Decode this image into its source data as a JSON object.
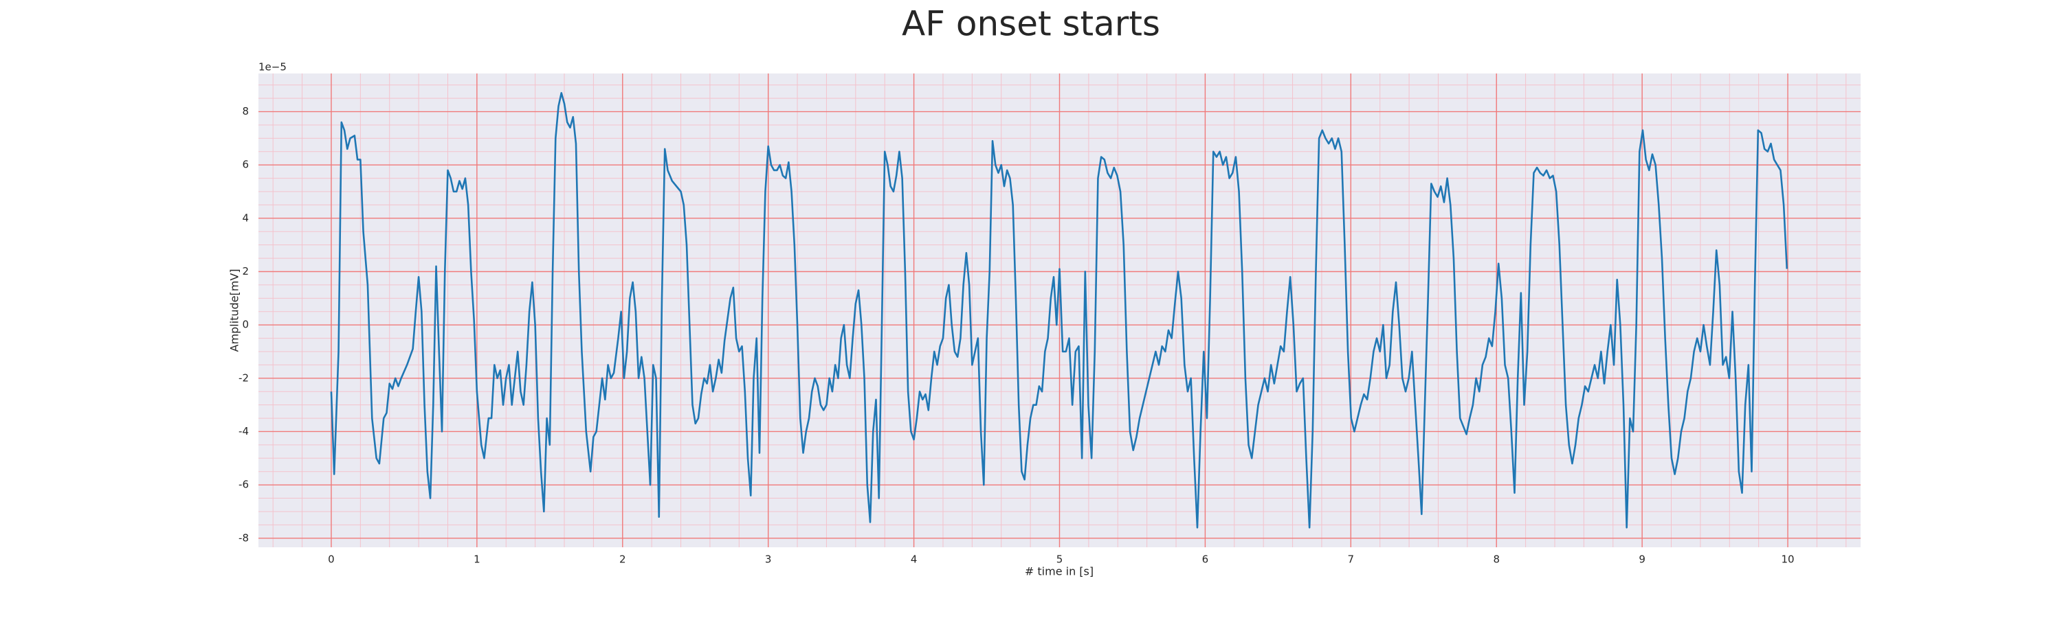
{
  "chart_data": {
    "type": "line",
    "title": "AF onset starts",
    "xlabel": "# time in [s]",
    "ylabel": "Amplitude[mV]",
    "y_offset_label": "1e−5",
    "color": "#1f77b4",
    "grid": true,
    "minor_grid": true,
    "xlim": [
      -0.5,
      10.5
    ],
    "ylim": [
      -8.34,
      9.43
    ],
    "xticks": [
      0,
      1,
      2,
      3,
      4,
      5,
      6,
      7,
      8,
      9,
      10
    ],
    "yticks": [
      -8,
      -6,
      -4,
      -2,
      0,
      2,
      4,
      6,
      8
    ],
    "x": [
      0,
      0.02,
      0.05,
      0.07,
      0.09,
      0.11,
      0.13,
      0.16,
      0.18,
      0.2,
      0.22,
      0.25,
      0.28,
      0.31,
      0.33,
      0.36,
      0.38,
      0.4,
      0.42,
      0.44,
      0.46,
      0.48,
      0.52,
      0.56,
      0.58,
      0.6,
      0.62,
      0.64,
      0.66,
      0.68,
      0.7,
      0.72,
      0.74,
      0.76,
      0.78,
      0.8,
      0.82,
      0.84,
      0.86,
      0.88,
      0.9,
      0.92,
      0.94,
      0.96,
      0.98,
      1,
      1.03,
      1.05,
      1.08,
      1.1,
      1.12,
      1.14,
      1.16,
      1.18,
      1.2,
      1.22,
      1.24,
      1.26,
      1.28,
      1.3,
      1.32,
      1.34,
      1.36,
      1.38,
      1.4,
      1.42,
      1.44,
      1.46,
      1.48,
      1.5,
      1.52,
      1.54,
      1.56,
      1.58,
      1.6,
      1.62,
      1.64,
      1.66,
      1.68,
      1.7,
      1.72,
      1.75,
      1.78,
      1.8,
      1.82,
      1.84,
      1.86,
      1.88,
      1.9,
      1.92,
      1.94,
      1.97,
      1.99,
      2.01,
      2.03,
      2.05,
      2.07,
      2.09,
      2.11,
      2.13,
      2.15,
      2.17,
      2.19,
      2.21,
      2.23,
      2.25,
      2.27,
      2.29,
      2.31,
      2.34,
      2.37,
      2.4,
      2.42,
      2.44,
      2.46,
      2.48,
      2.5,
      2.52,
      2.54,
      2.56,
      2.58,
      2.6,
      2.62,
      2.64,
      2.66,
      2.68,
      2.7,
      2.72,
      2.74,
      2.76,
      2.78,
      2.8,
      2.82,
      2.84,
      2.86,
      2.88,
      2.9,
      2.92,
      2.94,
      2.96,
      2.98,
      3,
      3.02,
      3.04,
      3.06,
      3.08,
      3.1,
      3.12,
      3.14,
      3.16,
      3.18,
      3.2,
      3.22,
      3.24,
      3.26,
      3.28,
      3.3,
      3.32,
      3.34,
      3.36,
      3.38,
      3.4,
      3.42,
      3.44,
      3.46,
      3.48,
      3.5,
      3.52,
      3.54,
      3.56,
      3.58,
      3.6,
      3.62,
      3.64,
      3.66,
      3.68,
      3.7,
      3.72,
      3.74,
      3.76,
      3.78,
      3.8,
      3.82,
      3.84,
      3.86,
      3.88,
      3.9,
      3.92,
      3.94,
      3.96,
      3.98,
      4,
      4.02,
      4.04,
      4.06,
      4.08,
      4.1,
      4.12,
      4.14,
      4.16,
      4.18,
      4.2,
      4.22,
      4.24,
      4.26,
      4.28,
      4.3,
      4.32,
      4.34,
      4.36,
      4.38,
      4.4,
      4.42,
      4.44,
      4.46,
      4.48,
      4.5,
      4.52,
      4.54,
      4.56,
      4.58,
      4.6,
      4.62,
      4.64,
      4.66,
      4.68,
      4.7,
      4.72,
      4.74,
      4.76,
      4.78,
      4.8,
      4.82,
      4.84,
      4.86,
      4.88,
      4.9,
      4.92,
      4.94,
      4.96,
      4.98,
      5,
      5.022,
      5.044,
      5.066,
      5.088,
      5.11,
      5.132,
      5.154,
      5.176,
      5.198,
      5.22,
      5.242,
      5.264,
      5.286,
      5.308,
      5.33,
      5.352,
      5.374,
      5.396,
      5.418,
      5.44,
      5.462,
      5.484,
      5.506,
      5.528,
      5.55,
      5.572,
      5.594,
      5.616,
      5.638,
      5.66,
      5.682,
      5.704,
      5.726,
      5.748,
      5.77,
      5.792,
      5.814,
      5.836,
      5.858,
      5.88,
      5.902,
      5.924,
      5.946,
      5.968,
      5.99,
      6.012,
      6.034,
      6.056,
      6.078,
      6.1,
      6.122,
      6.144,
      6.166,
      6.188,
      6.21,
      6.232,
      6.254,
      6.276,
      6.298,
      6.32,
      6.342,
      6.364,
      6.386,
      6.408,
      6.43,
      6.452,
      6.474,
      6.496,
      6.518,
      6.54,
      6.562,
      6.584,
      6.606,
      6.628,
      6.65,
      6.672,
      6.694,
      6.716,
      6.738,
      6.76,
      6.782,
      6.804,
      6.826,
      6.848,
      6.87,
      6.892,
      6.914,
      6.936,
      6.958,
      6.98,
      7.002,
      7.024,
      7.046,
      7.068,
      7.09,
      7.112,
      7.134,
      7.156,
      7.178,
      7.2,
      7.222,
      7.244,
      7.266,
      7.288,
      7.31,
      7.332,
      7.354,
      7.376,
      7.398,
      7.42,
      7.442,
      7.464,
      7.486,
      7.508,
      7.53,
      7.552,
      7.574,
      7.596,
      7.618,
      7.64,
      7.662,
      7.684,
      7.706,
      7.728,
      7.75,
      7.772,
      7.794,
      7.816,
      7.838,
      7.86,
      7.882,
      7.904,
      7.926,
      7.948,
      7.97,
      7.992,
      8.014,
      8.036,
      8.058,
      8.08,
      8.102,
      8.124,
      8.146,
      8.168,
      8.19,
      8.212,
      8.234,
      8.256,
      8.278,
      8.3,
      8.322,
      8.344,
      8.366,
      8.388,
      8.41,
      8.432,
      8.454,
      8.476,
      8.498,
      8.52,
      8.542,
      8.564,
      8.586,
      8.608,
      8.63,
      8.652,
      8.674,
      8.696,
      8.718,
      8.74,
      8.762,
      8.784,
      8.806,
      8.828,
      8.85,
      8.872,
      8.894,
      8.916,
      8.938,
      8.96,
      8.982,
      9.004,
      9.026,
      9.048,
      9.07,
      9.092,
      9.114,
      9.136,
      9.158,
      9.18,
      9.202,
      9.224,
      9.246,
      9.268,
      9.29,
      9.312,
      9.334,
      9.356,
      9.378,
      9.4,
      9.422,
      9.444,
      9.466,
      9.488,
      9.51,
      9.532,
      9.554,
      9.576,
      9.598,
      9.62,
      9.642,
      9.664,
      9.686,
      9.708,
      9.73,
      9.752,
      9.774,
      9.796,
      9.818,
      9.84,
      9.862,
      9.884,
      9.906,
      9.928,
      9.95,
      9.972,
      9.994
    ],
    "values": [
      -2.5,
      -5.6,
      -1,
      7.6,
      7.3,
      6.6,
      7,
      7.1,
      6.2,
      6.2,
      3.5,
      1.5,
      -3.5,
      -5,
      -5.2,
      -3.5,
      -3.3,
      -2.2,
      -2.4,
      -2,
      -2.3,
      -2,
      -1.5,
      -0.9,
      0.5,
      1.8,
      0.5,
      -3,
      -5.5,
      -6.5,
      -3,
      2.2,
      -1,
      -4,
      2,
      5.8,
      5.5,
      5,
      5,
      5.4,
      5.1,
      5.5,
      4.5,
      2,
      0.2,
      -2.5,
      -4.5,
      -5,
      -3.5,
      -3.5,
      -1.5,
      -2,
      -1.7,
      -3,
      -2,
      -1.5,
      -3,
      -2,
      -1,
      -2.5,
      -3,
      -1.5,
      0.5,
      1.6,
      0,
      -3.5,
      -5.5,
      -7,
      -3.5,
      -4.5,
      2,
      7,
      8.2,
      8.7,
      8.3,
      7.6,
      7.4,
      7.8,
      6.8,
      2,
      -1,
      -4,
      -5.5,
      -4.2,
      -4,
      -3,
      -2,
      -2.8,
      -1.5,
      -2,
      -1.8,
      -0.5,
      0.5,
      -2,
      -1,
      1,
      1.6,
      0.5,
      -2,
      -1.2,
      -2,
      -4,
      -6,
      -1.5,
      -2,
      -7.2,
      1,
      6.6,
      5.8,
      5.4,
      5.2,
      5,
      4.5,
      3,
      0,
      -3,
      -3.7,
      -3.5,
      -2.6,
      -2,
      -2.2,
      -1.5,
      -2.5,
      -2,
      -1.3,
      -1.8,
      -0.6,
      0.2,
      1,
      1.4,
      -0.5,
      -1,
      -0.8,
      -2.5,
      -5,
      -6.4,
      -2,
      -0.5,
      -4.8,
      1,
      5,
      6.7,
      6,
      5.8,
      5.8,
      6,
      5.6,
      5.5,
      6.1,
      5,
      3,
      0,
      -3.5,
      -4.8,
      -4,
      -3.5,
      -2.5,
      -2,
      -2.3,
      -3,
      -3.2,
      -3,
      -2,
      -2.5,
      -1.5,
      -2,
      -0.5,
      0,
      -1.5,
      -2,
      -0.5,
      0.8,
      1.3,
      0,
      -2,
      -6,
      -7.4,
      -4,
      -2.8,
      -6.5,
      0,
      6.5,
      6,
      5.2,
      5,
      5.6,
      6.5,
      5.5,
      2,
      -2.5,
      -4,
      -4.3,
      -3.5,
      -2.5,
      -2.8,
      -2.6,
      -3.2,
      -2,
      -1,
      -1.5,
      -0.8,
      -0.5,
      1,
      1.5,
      0,
      -1,
      -1.2,
      -0.5,
      1.5,
      2.7,
      1.5,
      -1.5,
      -1,
      -0.5,
      -4,
      -6,
      -0.5,
      2,
      6.9,
      6,
      5.7,
      6,
      5.2,
      5.8,
      5.5,
      4.5,
      1,
      -3,
      -5.5,
      -5.8,
      -4.5,
      -3.5,
      -3,
      -3,
      -2.3,
      -2.5,
      -1,
      -0.5,
      1,
      1.8,
      0,
      2.1,
      -1,
      -1,
      -0.5,
      -3,
      -1,
      -0.8,
      -5,
      2,
      -3,
      -5,
      -1,
      5.5,
      6.3,
      6.2,
      5.7,
      5.5,
      5.9,
      5.6,
      5,
      3,
      -1,
      -4,
      -4.7,
      -4.2,
      -3.5,
      -3,
      -2.5,
      -2,
      -1.5,
      -1,
      -1.5,
      -0.8,
      -1,
      -0.2,
      -0.5,
      0.8,
      2,
      1,
      -1.5,
      -2.5,
      -2,
      -5,
      -7.6,
      -4,
      -1,
      -3.5,
      1,
      6.5,
      6.3,
      6.5,
      6,
      6.3,
      5.5,
      5.7,
      6.3,
      5,
      2,
      -2,
      -4.5,
      -5,
      -4,
      -3,
      -2.5,
      -2,
      -2.5,
      -1.5,
      -2.2,
      -1.5,
      -0.8,
      -1,
      0.5,
      1.8,
      0,
      -2.5,
      -2.2,
      -2,
      -5,
      -7.6,
      -4,
      2,
      7,
      7.3,
      7,
      6.8,
      7,
      6.6,
      7,
      6.5,
      3,
      -1,
      -3.5,
      -4,
      -3.5,
      -3,
      -2.6,
      -2.8,
      -2,
      -1,
      -0.5,
      -1,
      0,
      -2,
      -1.5,
      0.5,
      1.6,
      0,
      -2,
      -2.5,
      -2,
      -1,
      -3,
      -5,
      -7.1,
      -3,
      1,
      5.3,
      5,
      4.8,
      5.2,
      4.6,
      5.5,
      4.5,
      2.5,
      -1,
      -3.5,
      -3.8,
      -4.1,
      -3.5,
      -3,
      -2,
      -2.5,
      -1.5,
      -1.2,
      -0.5,
      -0.8,
      0.5,
      2.3,
      1,
      -1.5,
      -2,
      -4,
      -6.3,
      -2,
      1.2,
      -3,
      -1,
      3,
      5.7,
      5.9,
      5.7,
      5.6,
      5.8,
      5.5,
      5.6,
      5,
      3,
      0,
      -3,
      -4.5,
      -5.2,
      -4.5,
      -3.5,
      -3,
      -2.3,
      -2.5,
      -2,
      -1.5,
      -2,
      -1,
      -2.2,
      -1,
      0,
      -1.5,
      1.7,
      0,
      -3,
      -7.6,
      -3.5,
      -4,
      0,
      6.5,
      7.3,
      6.2,
      5.8,
      6.4,
      6,
      4.5,
      2.5,
      -0.5,
      -3,
      -5,
      -5.6,
      -5,
      -4,
      -3.5,
      -2.5,
      -2,
      -1,
      -0.5,
      -1,
      0,
      -0.8,
      -1.5,
      0.5,
      2.8,
      1.5,
      -1.5,
      -1.2,
      -2,
      0.5,
      -2,
      -5.5,
      -6.3,
      -3,
      -1.5,
      -5.5,
      1.5,
      7.3,
      7.2,
      6.6,
      6.5,
      6.8,
      6.2,
      6,
      5.8,
      4.5,
      2.1
    ]
  }
}
